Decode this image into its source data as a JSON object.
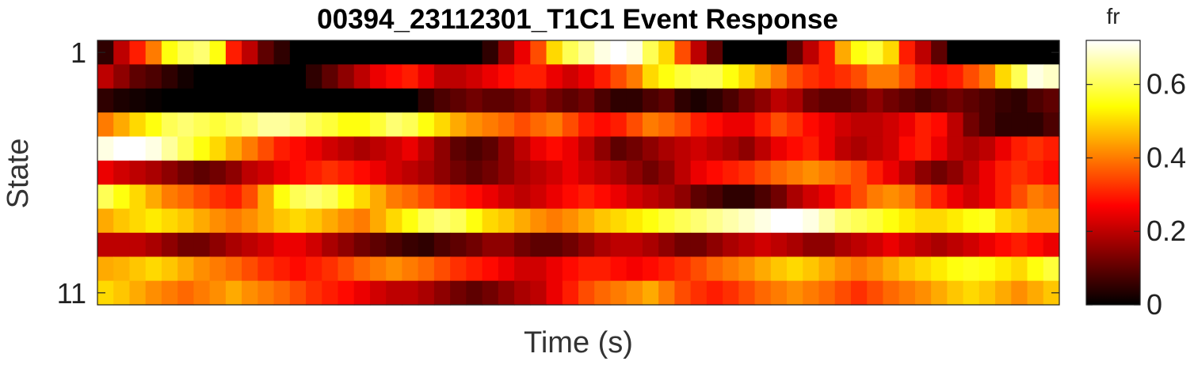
{
  "chart_data": {
    "type": "heatmap",
    "title": "00394_23112301_T1C1 Event Response",
    "xlabel": "Time (s)",
    "ylabel": "State",
    "y_tick_labels": [
      "1",
      "11"
    ],
    "y_range": [
      1,
      11
    ],
    "colorbar": {
      "label": "fr",
      "colormap": "hot",
      "range": [
        0,
        0.72
      ],
      "ticks": [
        0,
        0.2,
        0.4,
        0.6
      ],
      "tick_labels": [
        "0",
        "0.2",
        "0.4",
        "0.6"
      ]
    },
    "n_time_bins": 60,
    "rows": [
      {
        "state": 1,
        "values": [
          0.05,
          0.2,
          0.3,
          0.4,
          0.55,
          0.6,
          0.62,
          0.55,
          0.3,
          0.2,
          0.1,
          0.05,
          0,
          0,
          0,
          0,
          0,
          0,
          0,
          0,
          0,
          0,
          0,
          0,
          0.05,
          0.15,
          0.25,
          0.35,
          0.5,
          0.6,
          0.65,
          0.7,
          0.72,
          0.7,
          0.6,
          0.5,
          0.35,
          0.2,
          0.1,
          0,
          0,
          0,
          0,
          0.1,
          0.2,
          0.3,
          0.45,
          0.55,
          0.58,
          0.5,
          0.3,
          0.2,
          0.1,
          0,
          0,
          0,
          0,
          0,
          0,
          0
        ]
      },
      {
        "state": 2,
        "values": [
          0.2,
          0.15,
          0.1,
          0.08,
          0.05,
          0.02,
          0,
          0,
          0,
          0,
          0,
          0,
          0,
          0.05,
          0.1,
          0.15,
          0.2,
          0.25,
          0.28,
          0.3,
          0.25,
          0.2,
          0.2,
          0.22,
          0.25,
          0.28,
          0.3,
          0.3,
          0.25,
          0.22,
          0.25,
          0.3,
          0.35,
          0.4,
          0.5,
          0.55,
          0.58,
          0.6,
          0.6,
          0.55,
          0.5,
          0.45,
          0.4,
          0.35,
          0.32,
          0.3,
          0.32,
          0.35,
          0.4,
          0.4,
          0.35,
          0.3,
          0.28,
          0.3,
          0.35,
          0.4,
          0.5,
          0.6,
          0.7,
          0.68
        ]
      },
      {
        "state": 3,
        "values": [
          0.05,
          0.03,
          0.02,
          0.01,
          0,
          0,
          0,
          0,
          0,
          0,
          0,
          0,
          0,
          0,
          0,
          0,
          0,
          0,
          0,
          0,
          0.05,
          0.08,
          0.1,
          0.12,
          0.1,
          0.1,
          0.12,
          0.15,
          0.12,
          0.1,
          0.12,
          0.08,
          0.05,
          0.05,
          0.08,
          0.1,
          0.05,
          0.03,
          0.05,
          0.08,
          0.12,
          0.15,
          0.2,
          0.18,
          0.12,
          0.1,
          0.1,
          0.12,
          0.15,
          0.12,
          0.1,
          0.08,
          0.1,
          0.12,
          0.1,
          0.08,
          0.06,
          0.05,
          0.08,
          0.1
        ]
      },
      {
        "state": 4,
        "values": [
          0.4,
          0.45,
          0.5,
          0.55,
          0.6,
          0.62,
          0.6,
          0.58,
          0.6,
          0.62,
          0.65,
          0.65,
          0.63,
          0.6,
          0.58,
          0.55,
          0.55,
          0.58,
          0.62,
          0.6,
          0.55,
          0.5,
          0.45,
          0.42,
          0.4,
          0.38,
          0.35,
          0.38,
          0.4,
          0.35,
          0.3,
          0.28,
          0.3,
          0.35,
          0.4,
          0.38,
          0.35,
          0.3,
          0.28,
          0.25,
          0.25,
          0.3,
          0.35,
          0.32,
          0.28,
          0.25,
          0.22,
          0.2,
          0.2,
          0.22,
          0.25,
          0.3,
          0.28,
          0.2,
          0.12,
          0.08,
          0.05,
          0.05,
          0.05,
          0.08
        ]
      },
      {
        "state": 5,
        "values": [
          0.7,
          0.72,
          0.72,
          0.7,
          0.65,
          0.6,
          0.55,
          0.5,
          0.45,
          0.4,
          0.35,
          0.3,
          0.28,
          0.25,
          0.22,
          0.2,
          0.18,
          0.2,
          0.22,
          0.25,
          0.2,
          0.15,
          0.1,
          0.08,
          0.1,
          0.15,
          0.2,
          0.25,
          0.28,
          0.25,
          0.2,
          0.15,
          0.1,
          0.12,
          0.15,
          0.18,
          0.2,
          0.22,
          0.2,
          0.18,
          0.15,
          0.2,
          0.25,
          0.28,
          0.3,
          0.25,
          0.2,
          0.18,
          0.2,
          0.22,
          0.28,
          0.3,
          0.25,
          0.2,
          0.18,
          0.2,
          0.25,
          0.3,
          0.32,
          0.3
        ]
      },
      {
        "state": 6,
        "values": [
          0.25,
          0.22,
          0.2,
          0.18,
          0.15,
          0.12,
          0.1,
          0.12,
          0.15,
          0.2,
          0.22,
          0.25,
          0.28,
          0.3,
          0.32,
          0.3,
          0.28,
          0.25,
          0.22,
          0.2,
          0.18,
          0.15,
          0.12,
          0.1,
          0.12,
          0.15,
          0.18,
          0.2,
          0.22,
          0.25,
          0.22,
          0.2,
          0.18,
          0.15,
          0.12,
          0.15,
          0.2,
          0.25,
          0.28,
          0.3,
          0.32,
          0.35,
          0.38,
          0.4,
          0.42,
          0.4,
          0.38,
          0.35,
          0.3,
          0.25,
          0.2,
          0.15,
          0.12,
          0.15,
          0.2,
          0.25,
          0.3,
          0.32,
          0.3,
          0.28
        ]
      },
      {
        "state": 7,
        "values": [
          0.6,
          0.55,
          0.5,
          0.45,
          0.4,
          0.38,
          0.35,
          0.32,
          0.3,
          0.35,
          0.45,
          0.55,
          0.6,
          0.62,
          0.6,
          0.55,
          0.5,
          0.45,
          0.4,
          0.38,
          0.35,
          0.32,
          0.3,
          0.28,
          0.25,
          0.22,
          0.2,
          0.22,
          0.25,
          0.28,
          0.3,
          0.28,
          0.25,
          0.22,
          0.2,
          0.18,
          0.15,
          0.1,
          0.08,
          0.05,
          0.05,
          0.08,
          0.12,
          0.18,
          0.22,
          0.25,
          0.3,
          0.35,
          0.4,
          0.42,
          0.4,
          0.35,
          0.3,
          0.25,
          0.22,
          0.25,
          0.3,
          0.35,
          0.4,
          0.38
        ]
      },
      {
        "state": 8,
        "values": [
          0.45,
          0.48,
          0.5,
          0.52,
          0.5,
          0.48,
          0.45,
          0.42,
          0.4,
          0.42,
          0.45,
          0.48,
          0.5,
          0.48,
          0.45,
          0.42,
          0.4,
          0.45,
          0.5,
          0.55,
          0.6,
          0.62,
          0.6,
          0.55,
          0.5,
          0.48,
          0.45,
          0.42,
          0.4,
          0.42,
          0.45,
          0.48,
          0.5,
          0.52,
          0.55,
          0.58,
          0.6,
          0.62,
          0.64,
          0.66,
          0.68,
          0.7,
          0.72,
          0.72,
          0.7,
          0.66,
          0.62,
          0.6,
          0.58,
          0.55,
          0.52,
          0.5,
          0.5,
          0.52,
          0.55,
          0.56,
          0.5,
          0.48,
          0.45,
          0.45
        ]
      },
      {
        "state": 9,
        "values": [
          0.2,
          0.2,
          0.2,
          0.18,
          0.15,
          0.12,
          0.12,
          0.15,
          0.18,
          0.2,
          0.22,
          0.25,
          0.25,
          0.22,
          0.18,
          0.15,
          0.12,
          0.1,
          0.08,
          0.06,
          0.05,
          0.08,
          0.1,
          0.12,
          0.15,
          0.15,
          0.12,
          0.1,
          0.1,
          0.12,
          0.15,
          0.18,
          0.2,
          0.2,
          0.18,
          0.15,
          0.12,
          0.12,
          0.15,
          0.18,
          0.2,
          0.22,
          0.2,
          0.18,
          0.15,
          0.15,
          0.18,
          0.2,
          0.22,
          0.25,
          0.22,
          0.2,
          0.18,
          0.2,
          0.22,
          0.25,
          0.28,
          0.3,
          0.28,
          0.25
        ]
      },
      {
        "state": 10,
        "values": [
          0.45,
          0.46,
          0.48,
          0.5,
          0.48,
          0.45,
          0.42,
          0.4,
          0.38,
          0.35,
          0.32,
          0.3,
          0.28,
          0.3,
          0.32,
          0.35,
          0.38,
          0.4,
          0.42,
          0.4,
          0.38,
          0.35,
          0.32,
          0.3,
          0.28,
          0.25,
          0.22,
          0.22,
          0.25,
          0.28,
          0.3,
          0.3,
          0.28,
          0.26,
          0.28,
          0.3,
          0.32,
          0.35,
          0.38,
          0.4,
          0.42,
          0.45,
          0.48,
          0.5,
          0.48,
          0.45,
          0.42,
          0.4,
          0.42,
          0.45,
          0.48,
          0.5,
          0.52,
          0.55,
          0.56,
          0.55,
          0.52,
          0.5,
          0.55,
          0.58
        ]
      },
      {
        "state": 11,
        "values": [
          0.5,
          0.48,
          0.45,
          0.42,
          0.4,
          0.38,
          0.4,
          0.42,
          0.45,
          0.42,
          0.4,
          0.38,
          0.35,
          0.32,
          0.3,
          0.28,
          0.25,
          0.22,
          0.2,
          0.2,
          0.18,
          0.15,
          0.12,
          0.1,
          0.12,
          0.15,
          0.18,
          0.2,
          0.25,
          0.3,
          0.35,
          0.38,
          0.4,
          0.42,
          0.45,
          0.4,
          0.35,
          0.32,
          0.3,
          0.32,
          0.35,
          0.38,
          0.4,
          0.42,
          0.4,
          0.38,
          0.35,
          0.32,
          0.35,
          0.38,
          0.4,
          0.42,
          0.45,
          0.48,
          0.5,
          0.48,
          0.45,
          0.42,
          0.45,
          0.48
        ]
      }
    ]
  }
}
